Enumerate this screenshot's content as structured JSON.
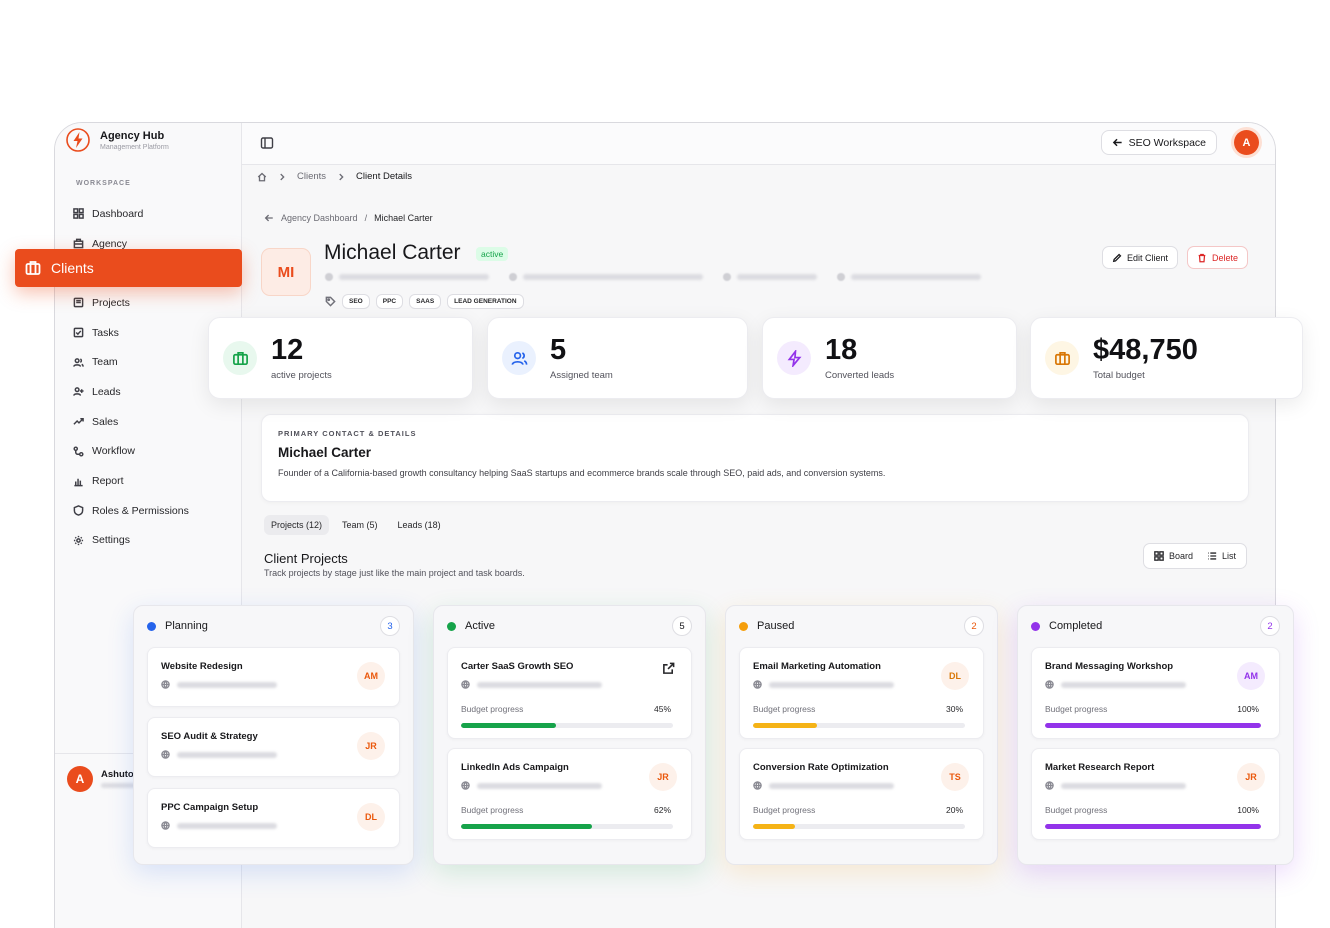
{
  "app": {
    "name": "Agency Hub",
    "subtitle": "Management Platform"
  },
  "sidebar": {
    "section_label": "WORKSPACE",
    "items": [
      {
        "label": "Dashboard",
        "icon": "grid-icon"
      },
      {
        "label": "Agency",
        "icon": "building-icon"
      },
      {
        "label": "Clients",
        "icon": "briefcase-icon",
        "active": true
      },
      {
        "label": "Projects",
        "icon": "folder-icon"
      },
      {
        "label": "Tasks",
        "icon": "check-square-icon"
      },
      {
        "label": "Team",
        "icon": "users-icon"
      },
      {
        "label": "Leads",
        "icon": "user-plus-icon"
      },
      {
        "label": "Sales",
        "icon": "trending-up-icon"
      },
      {
        "label": "Workflow",
        "icon": "workflow-icon"
      },
      {
        "label": "Report",
        "icon": "bar-chart-icon"
      },
      {
        "label": "Roles & Permissions",
        "icon": "shield-icon"
      },
      {
        "label": "Settings",
        "icon": "gear-icon"
      }
    ],
    "user": {
      "initial": "A",
      "name": "Ashuto"
    }
  },
  "topbar": {
    "workspace_button": "SEO Workspace",
    "avatar_initial": "A"
  },
  "breadcrumb": {
    "items": [
      "Clients",
      "Client Details"
    ]
  },
  "back_nav": {
    "parent": "Agency Dashboard",
    "separator": "/",
    "current": "Michael Carter"
  },
  "client": {
    "initials": "MI",
    "name": "Michael Carter",
    "status": "active",
    "tags": [
      "SEO",
      "PPC",
      "SAAS",
      "LEAD GENERATION"
    ],
    "edit_label": "Edit Client",
    "delete_label": "Delete"
  },
  "stats": [
    {
      "value": "12",
      "caption": "active projects",
      "icon": "briefcase-icon",
      "color": "#16a34a"
    },
    {
      "value": "5",
      "caption": "Assigned team",
      "icon": "users-icon",
      "color": "#2563eb"
    },
    {
      "value": "18",
      "caption": "Converted leads",
      "icon": "lightning-icon",
      "color": "#9333ea"
    },
    {
      "value": "$48,750",
      "caption": "Total budget",
      "icon": "briefcase-icon",
      "color": "#d97706"
    }
  ],
  "contact": {
    "label": "PRIMARY CONTACT & DETAILS",
    "name": "Michael Carter",
    "description": "Founder of a California-based growth consultancy helping SaaS startups and ecommerce brands scale through SEO, paid ads, and conversion systems."
  },
  "tabs": [
    "Projects (12)",
    "Team (5)",
    "Leads (18)"
  ],
  "projects_section": {
    "title": "Client Projects",
    "subtitle": "Track projects by stage just like the main project and task boards.",
    "view_board": "Board",
    "view_list": "List"
  },
  "board": {
    "columns": [
      {
        "name": "Planning",
        "count": "3",
        "color": "#2563eb",
        "cards": [
          {
            "title": "Website Redesign",
            "initials": "AM"
          },
          {
            "title": "SEO Audit & Strategy",
            "initials": "JR"
          },
          {
            "title": "PPC Campaign Setup",
            "initials": "DL"
          }
        ]
      },
      {
        "name": "Active",
        "count": "5",
        "color": "#16a34a",
        "cards": [
          {
            "title": "Carter SaaS Growth SEO",
            "progress_label": "Budget progress",
            "progress": 45,
            "progress_text": "45%"
          },
          {
            "title": "LinkedIn Ads Campaign",
            "initials": "JR",
            "progress_label": "Budget progress",
            "progress": 62,
            "progress_text": "62%"
          }
        ]
      },
      {
        "name": "Paused",
        "count": "2",
        "color": "#f59e0b",
        "cards": [
          {
            "title": "Email Marketing Automation",
            "initials": "DL",
            "progress_label": "Budget progress",
            "progress": 30,
            "progress_text": "30%"
          },
          {
            "title": "Conversion Rate Optimization",
            "initials": "TS",
            "progress_label": "Budget progress",
            "progress": 20,
            "progress_text": "20%"
          }
        ]
      },
      {
        "name": "Completed",
        "count": "2",
        "color": "#9333ea",
        "cards": [
          {
            "title": "Brand Messaging Workshop",
            "initials": "AM",
            "progress_label": "Budget progress",
            "progress": 100,
            "progress_text": "100%"
          },
          {
            "title": "Market Research Report",
            "initials": "JR",
            "progress_label": "Budget progress",
            "progress": 100,
            "progress_text": "100%"
          }
        ]
      }
    ]
  },
  "colors": {
    "accent": "#ea4c1d",
    "planning": "#2563eb",
    "active": "#16a34a",
    "paused": "#f59e0b",
    "completed": "#9333ea"
  }
}
